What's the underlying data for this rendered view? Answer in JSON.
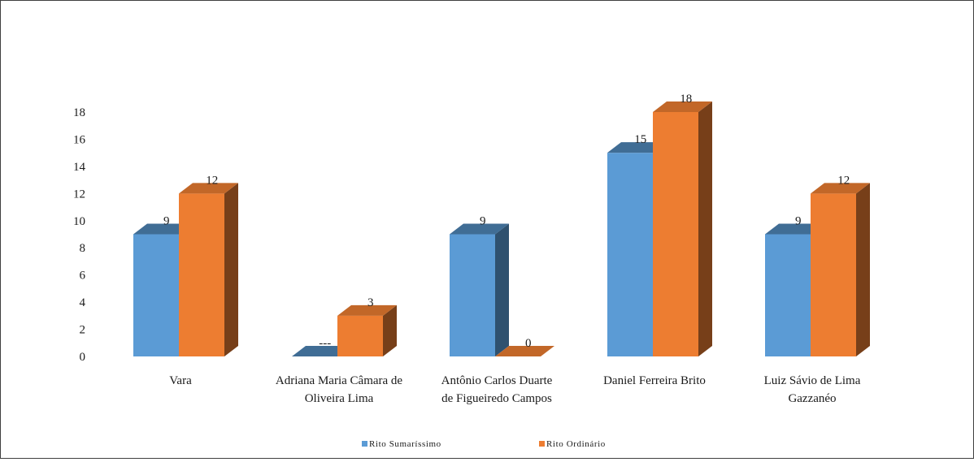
{
  "chart_data": {
    "type": "bar",
    "style": "3d-clustered-column",
    "categories": [
      [
        "Vara"
      ],
      [
        "Adriana Maria Câmara de",
        "Oliveira Lima"
      ],
      [
        "Antônio Carlos Duarte",
        "de Figueiredo Campos"
      ],
      [
        "Daniel Ferreira Brito"
      ],
      [
        "Luiz Sávio de Lima",
        "Gazzanéo"
      ]
    ],
    "series": [
      {
        "name": "Rito Sumaríssimo",
        "color": "#5b9bd5",
        "values": [
          9,
          0,
          9,
          15,
          9
        ],
        "labels": [
          "9",
          "---",
          "9",
          "15",
          "9"
        ]
      },
      {
        "name": "Rito Ordinário",
        "color": "#ed7d31",
        "values": [
          12,
          3,
          0,
          18,
          12
        ],
        "labels": [
          "12",
          "3",
          "0",
          "18",
          "12"
        ]
      }
    ],
    "ylim": [
      0,
      18
    ],
    "yticks": [
      "0",
      "2",
      "4",
      "6",
      "8",
      "10",
      "12",
      "14",
      "16",
      "18"
    ],
    "grid": false,
    "legend_position": "bottom",
    "title": "",
    "xlabel": "",
    "ylabel": ""
  }
}
